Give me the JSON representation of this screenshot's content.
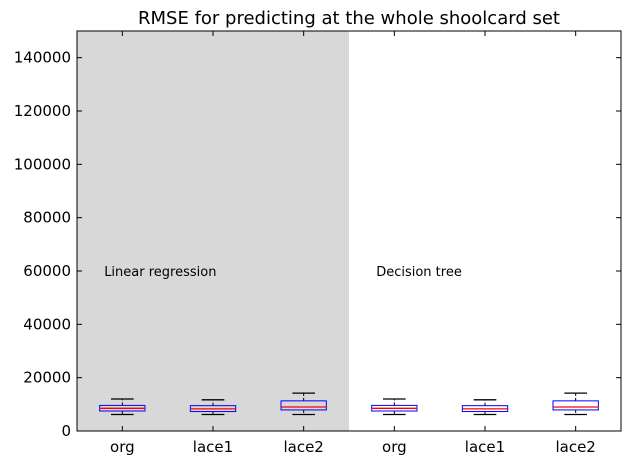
{
  "chart_data": {
    "type": "box",
    "title": "RMSE for predicting at the whole shoolcard set",
    "xlabel": "",
    "ylabel": "",
    "ylim": [
      0,
      150000
    ],
    "yticks": [
      0,
      20000,
      40000,
      60000,
      80000,
      100000,
      120000,
      140000
    ],
    "yticks_labels": [
      "0",
      "20000",
      "40000",
      "60000",
      "80000",
      "100000",
      "120000",
      "140000"
    ],
    "categories": [
      "org",
      "lace1",
      "lace2",
      "org",
      "lace1",
      "lace2"
    ],
    "boxes": [
      {
        "label": "org",
        "whislo": 6200,
        "q1": 7500,
        "med": 8500,
        "q3": 9600,
        "whishi": 12000
      },
      {
        "label": "lace1",
        "whislo": 6200,
        "q1": 7300,
        "med": 8300,
        "q3": 9500,
        "whishi": 11700
      },
      {
        "label": "lace2",
        "whislo": 6200,
        "q1": 7900,
        "med": 9000,
        "q3": 11300,
        "whishi": 14200
      },
      {
        "label": "org",
        "whislo": 6200,
        "q1": 7500,
        "med": 8500,
        "q3": 9600,
        "whishi": 12000
      },
      {
        "label": "lace1",
        "whislo": 6200,
        "q1": 7300,
        "med": 8300,
        "q3": 9500,
        "whishi": 11700
      },
      {
        "label": "lace2",
        "whislo": 6200,
        "q1": 7900,
        "med": 9000,
        "q3": 11300,
        "whishi": 14200
      }
    ],
    "shaded_region": {
      "from_category_index": 0,
      "to_category_index": 2,
      "color": "#d8d8d8"
    },
    "annotations": [
      {
        "text": "Linear regression",
        "x_category_index": 0.3,
        "y": 60000
      },
      {
        "text": "Decision tree",
        "x_category_index": 3.3,
        "y": 60000
      }
    ],
    "colors": {
      "box": "#0000ff",
      "median": "#ff0000",
      "whisker": "#000000",
      "shade": "#d8d8d8"
    },
    "grid": false,
    "legend": "none"
  }
}
